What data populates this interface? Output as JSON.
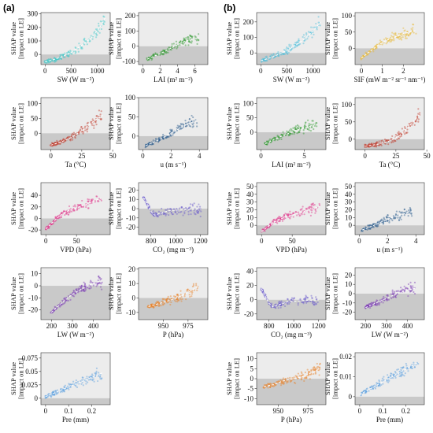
{
  "panel_labels": [
    "(a)",
    "(b)"
  ],
  "ylabel_lines": [
    "SHAP value",
    "[impact on LE]"
  ],
  "chart_data": [
    {
      "id": "a-sw",
      "panel": "a",
      "type": "scatter",
      "xlabel": "SW (W m⁻²)",
      "ylabel": "SHAP value [impact on LE]",
      "xlim": [
        -80,
        1250
      ],
      "ylim": [
        -75,
        310
      ],
      "xticks": [
        0,
        500,
        1000
      ],
      "yticks": [
        0,
        100,
        200,
        300
      ],
      "color": "#3cc9c9",
      "trend": [
        [
          0,
          -55
        ],
        [
          150,
          -40
        ],
        [
          300,
          -20
        ],
        [
          450,
          5
        ],
        [
          600,
          40
        ],
        [
          750,
          80
        ],
        [
          900,
          130
        ],
        [
          1050,
          200
        ],
        [
          1150,
          270
        ]
      ]
    },
    {
      "id": "a-lai",
      "panel": "a",
      "type": "scatter",
      "xlabel": "LAI (m² m⁻²)",
      "ylabel": "SHAP value [impact on LE]",
      "xlim": [
        -0.5,
        7.5
      ],
      "ylim": [
        -120,
        220
      ],
      "xticks": [
        0,
        2,
        4,
        6
      ],
      "yticks": [
        -100,
        0,
        100,
        200
      ],
      "color": "#2e9a2e",
      "trend": [
        [
          0.5,
          -85
        ],
        [
          1.5,
          -60
        ],
        [
          2.5,
          -35
        ],
        [
          3.5,
          -5
        ],
        [
          4.5,
          25
        ],
        [
          5.5,
          45
        ],
        [
          6.5,
          55
        ]
      ]
    },
    {
      "id": "a-ta",
      "panel": "a",
      "type": "scatter",
      "xlabel": "Ta (°C)",
      "ylabel": "SHAP value [impact on LE]",
      "xlim": [
        -8,
        48
      ],
      "ylim": [
        -55,
        120
      ],
      "xticks": [
        0,
        25,
        50
      ],
      "yticks": [
        0,
        50,
        100
      ],
      "color": "#c0392b",
      "trend": [
        [
          0,
          -40
        ],
        [
          8,
          -30
        ],
        [
          16,
          -15
        ],
        [
          24,
          5
        ],
        [
          30,
          25
        ],
        [
          36,
          45
        ],
        [
          42,
          60
        ]
      ]
    },
    {
      "id": "a-u",
      "panel": "a",
      "type": "scatter",
      "xlabel": "u (m s⁻¹)",
      "ylabel": "SHAP value [impact on LE]",
      "xlim": [
        -0.3,
        4.6
      ],
      "ylim": [
        -35,
        100
      ],
      "xticks": [
        0,
        2,
        4
      ],
      "yticks": [
        0,
        50,
        100
      ],
      "color": "#2c5d8f",
      "trend": [
        [
          0.2,
          -25
        ],
        [
          0.8,
          -15
        ],
        [
          1.4,
          -5
        ],
        [
          2.0,
          8
        ],
        [
          2.6,
          20
        ],
        [
          3.2,
          32
        ],
        [
          3.8,
          40
        ]
      ]
    },
    {
      "id": "a-vpd",
      "panel": "a",
      "type": "scatter",
      "xlabel": "VPD (hPa)",
      "ylabel": "SHAP value [impact on LE]",
      "xlim": [
        -8,
        105
      ],
      "ylim": [
        -28,
        62
      ],
      "xticks": [
        0,
        50
      ],
      "yticks": [
        -20,
        0,
        20,
        40
      ],
      "color": "#e0338a",
      "trend": [
        [
          0,
          -18
        ],
        [
          10,
          -8
        ],
        [
          20,
          2
        ],
        [
          30,
          10
        ],
        [
          40,
          15
        ],
        [
          60,
          22
        ],
        [
          90,
          35
        ]
      ]
    },
    {
      "id": "a-co2",
      "panel": "a",
      "type": "scatter",
      "xlabel": "CO₂ (mg m⁻³)",
      "ylabel": "SHAP value [impact on LE]",
      "xlim": [
        700,
        1260
      ],
      "ylim": [
        -28,
        28
      ],
      "xticks": [
        800,
        1000,
        1200
      ],
      "yticks": [
        -20,
        -10,
        0,
        10,
        20
      ],
      "color": "#6a5acd",
      "trend": [
        [
          740,
          12
        ],
        [
          770,
          5
        ],
        [
          800,
          -3
        ],
        [
          830,
          -7
        ],
        [
          880,
          -5
        ],
        [
          950,
          -2
        ],
        [
          1100,
          -1
        ],
        [
          1200,
          -0.5
        ]
      ]
    },
    {
      "id": "a-lw",
      "panel": "a",
      "type": "scatter",
      "xlabel": "LW (W m⁻²)",
      "ylabel": "SHAP value [impact on LE]",
      "xlim": [
        150,
        480
      ],
      "ylim": [
        -28,
        15
      ],
      "xticks": [
        200,
        300,
        400
      ],
      "yticks": [
        -20,
        -10,
        0,
        10
      ],
      "color": "#7d3cb5",
      "trend": [
        [
          200,
          -22
        ],
        [
          250,
          -14
        ],
        [
          300,
          -7
        ],
        [
          350,
          -2
        ],
        [
          400,
          2
        ],
        [
          440,
          4
        ]
      ]
    },
    {
      "id": "a-p",
      "panel": "a",
      "type": "scatter",
      "xlabel": "P (hPa)",
      "ylabel": "SHAP value [impact on LE]",
      "xlim": [
        925,
        995
      ],
      "ylim": [
        -15,
        21
      ],
      "xticks": [
        950,
        975
      ],
      "yticks": [
        -10,
        0,
        10,
        20
      ],
      "color": "#e8822a",
      "trend": [
        [
          935,
          -6
        ],
        [
          945,
          -4
        ],
        [
          955,
          -2
        ],
        [
          963,
          0
        ],
        [
          970,
          2
        ],
        [
          978,
          5
        ],
        [
          985,
          8
        ]
      ]
    },
    {
      "id": "a-pre",
      "panel": "a",
      "type": "scatter",
      "xlabel": "Pre (mm)",
      "ylabel": "SHAP value [impact on LE]",
      "xlim": [
        -0.02,
        0.28
      ],
      "ylim": [
        -0.012,
        0.085
      ],
      "xticks": [
        0.0,
        0.1,
        0.2
      ],
      "yticks": [
        0.0,
        0.025,
        0.05,
        0.075
      ],
      "color": "#5aa0e0",
      "trend": [
        [
          0,
          0.003
        ],
        [
          0.25,
          0.048
        ]
      ]
    },
    {
      "id": "b-sw",
      "panel": "b",
      "type": "scatter",
      "xlabel": "SW (W m⁻²)",
      "ylabel": "SHAP value [impact on LE]",
      "xlim": [
        -80,
        1250
      ],
      "ylim": [
        -75,
        260
      ],
      "xticks": [
        0,
        500,
        1000
      ],
      "yticks": [
        0,
        100,
        200
      ],
      "color": "#4cbfdc",
      "trend": [
        [
          0,
          -50
        ],
        [
          200,
          -30
        ],
        [
          400,
          0
        ],
        [
          600,
          35
        ],
        [
          800,
          80
        ],
        [
          1000,
          140
        ],
        [
          1150,
          200
        ]
      ]
    },
    {
      "id": "b-sif",
      "panel": "b",
      "type": "scatter",
      "xlabel": "SIF (mW m⁻² sr⁻¹ nm⁻¹)",
      "ylabel": "SHAP value [impact on LE]",
      "xlim": [
        -0.3,
        3.0
      ],
      "ylim": [
        -50,
        110
      ],
      "xticks": [
        0,
        1,
        2
      ],
      "yticks": [
        0,
        50,
        100
      ],
      "color": "#e8b830",
      "trend": [
        [
          0,
          -30
        ],
        [
          0.4,
          -10
        ],
        [
          0.8,
          10
        ],
        [
          1.2,
          25
        ],
        [
          1.6,
          35
        ],
        [
          2.0,
          45
        ],
        [
          2.6,
          55
        ]
      ]
    },
    {
      "id": "b-lai",
      "panel": "b",
      "type": "scatter",
      "xlabel": "LAI (m² m⁻²)",
      "ylabel": "SHAP value [impact on LE]",
      "xlim": [
        -0.5,
        7.5
      ],
      "ylim": [
        -60,
        120
      ],
      "xticks": [
        0,
        5
      ],
      "yticks": [
        0,
        50,
        100
      ],
      "color": "#2e9a2e",
      "trend": [
        [
          0.5,
          -40
        ],
        [
          1.5,
          -25
        ],
        [
          2.5,
          -12
        ],
        [
          3.5,
          0
        ],
        [
          4.5,
          12
        ],
        [
          5.5,
          20
        ],
        [
          6.5,
          28
        ]
      ]
    },
    {
      "id": "b-ta",
      "panel": "b",
      "type": "scatter",
      "xlabel": "Ta (°C)",
      "ylabel": "SHAP value [impact on LE]",
      "xlim": [
        -8,
        48
      ],
      "ylim": [
        -30,
        120
      ],
      "xticks": [
        0,
        25,
        50
      ],
      "yticks": [
        0,
        50,
        100
      ],
      "color": "#c0392b",
      "trend": [
        [
          0,
          -20
        ],
        [
          10,
          -15
        ],
        [
          20,
          -5
        ],
        [
          28,
          10
        ],
        [
          34,
          30
        ],
        [
          40,
          55
        ],
        [
          44,
          70
        ]
      ]
    },
    {
      "id": "b-vpd",
      "panel": "b",
      "type": "scatter",
      "xlabel": "VPD (hPa)",
      "ylabel": "SHAP value [impact on LE]",
      "xlim": [
        -8,
        105
      ],
      "ylim": [
        -12,
        55
      ],
      "xticks": [
        0,
        50
      ],
      "yticks": [
        0,
        10,
        20,
        30,
        40,
        50
      ],
      "color": "#e0338a",
      "trend": [
        [
          0,
          -8
        ],
        [
          10,
          -2
        ],
        [
          20,
          4
        ],
        [
          30,
          8
        ],
        [
          45,
          12
        ],
        [
          70,
          18
        ],
        [
          95,
          24
        ]
      ]
    },
    {
      "id": "b-u",
      "panel": "b",
      "type": "scatter",
      "xlabel": "u (m s⁻¹)",
      "ylabel": "SHAP value [impact on LE]",
      "xlim": [
        -0.3,
        4.6
      ],
      "ylim": [
        -12,
        55
      ],
      "xticks": [
        0,
        2,
        4
      ],
      "yticks": [
        0,
        10,
        20,
        30,
        40,
        50
      ],
      "color": "#2c5d8f",
      "trend": [
        [
          0.2,
          -6
        ],
        [
          0.8,
          -2
        ],
        [
          1.4,
          3
        ],
        [
          2.0,
          8
        ],
        [
          2.6,
          12
        ],
        [
          3.2,
          15
        ],
        [
          3.8,
          18
        ]
      ]
    },
    {
      "id": "b-co2",
      "panel": "b",
      "type": "scatter",
      "xlabel": "CO₂ (mg m⁻³)",
      "ylabel": "SHAP value [impact on LE]",
      "xlim": [
        700,
        1260
      ],
      "ylim": [
        -28,
        45
      ],
      "xticks": [
        800,
        1000,
        1200
      ],
      "yticks": [
        -20,
        0,
        20,
        40
      ],
      "color": "#6a5acd",
      "trend": [
        [
          740,
          15
        ],
        [
          770,
          5
        ],
        [
          800,
          -5
        ],
        [
          830,
          -10
        ],
        [
          880,
          -7
        ],
        [
          950,
          -3
        ],
        [
          1100,
          -1
        ],
        [
          1200,
          -0.5
        ]
      ]
    },
    {
      "id": "b-lw",
      "panel": "b",
      "type": "scatter",
      "xlabel": "LW (W m⁻²)",
      "ylabel": "SHAP value [impact on LE]",
      "xlim": [
        150,
        480
      ],
      "ylim": [
        -28,
        28
      ],
      "xticks": [
        200,
        300,
        400
      ],
      "yticks": [
        -20,
        -10,
        0,
        10,
        20
      ],
      "color": "#7d3cb5",
      "trend": [
        [
          200,
          -15
        ],
        [
          250,
          -10
        ],
        [
          300,
          -5
        ],
        [
          350,
          0
        ],
        [
          400,
          4
        ],
        [
          440,
          6
        ]
      ]
    },
    {
      "id": "b-p",
      "panel": "b",
      "type": "scatter",
      "xlabel": "P (hPa)",
      "ylabel": "SHAP value [impact on LE]",
      "xlim": [
        932,
        990
      ],
      "ylim": [
        -13,
        13
      ],
      "xticks": [
        950,
        975
      ],
      "yticks": [
        -10,
        -5,
        0,
        5,
        10
      ],
      "color": "#e8822a",
      "trend": [
        [
          938,
          -4
        ],
        [
          946,
          -3
        ],
        [
          955,
          -1
        ],
        [
          963,
          0
        ],
        [
          970,
          1
        ],
        [
          978,
          3
        ],
        [
          985,
          5
        ]
      ]
    },
    {
      "id": "b-pre",
      "panel": "b",
      "type": "scatter",
      "xlabel": "Pre (mm)",
      "ylabel": "SHAP value [impact on LE]",
      "xlim": [
        -0.02,
        0.28
      ],
      "ylim": [
        -0.004,
        0.022
      ],
      "xticks": [
        0.0,
        0.1,
        0.2
      ],
      "yticks": [
        0.0,
        0.01,
        0.02
      ],
      "color": "#5aa0e0",
      "trend": [
        [
          0,
          0.001
        ],
        [
          0.25,
          0.017
        ]
      ]
    }
  ]
}
